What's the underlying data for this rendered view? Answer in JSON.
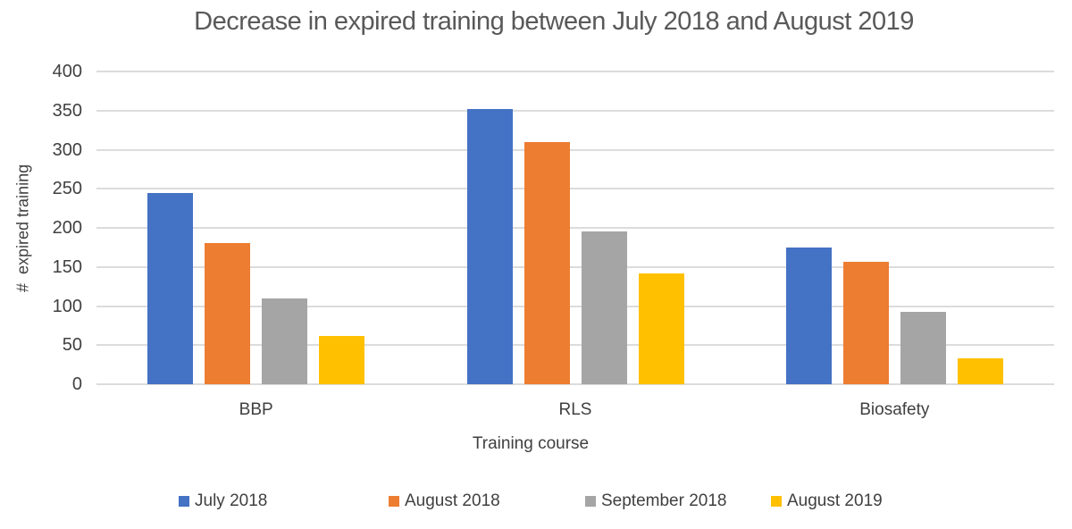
{
  "chart_data": {
    "type": "bar",
    "title": "Decrease in expired training between July 2018 and August 2019",
    "xlabel": "Training course",
    "ylabel": "#  expired training",
    "categories": [
      "BBP",
      "RLS",
      "Biosafety"
    ],
    "series": [
      {
        "name": "July 2018",
        "color": "#4472C4",
        "values": [
          245,
          352,
          175
        ]
      },
      {
        "name": "August 2018",
        "color": "#ED7D31",
        "values": [
          181,
          310,
          157
        ]
      },
      {
        "name": "September 2018",
        "color": "#A5A5A5",
        "values": [
          110,
          195,
          93
        ]
      },
      {
        "name": "August 2019",
        "color": "#FFC000",
        "values": [
          62,
          142,
          33
        ]
      }
    ],
    "ylim": [
      0,
      400
    ],
    "yticks": [
      0,
      50,
      100,
      150,
      200,
      250,
      300,
      350,
      400
    ],
    "grid": true,
    "legend_position": "bottom"
  },
  "colors": {
    "title_text": "#595959",
    "axis_text": "#404040",
    "gridline": "#DCDCDC",
    "background": "#FFFFFF"
  }
}
